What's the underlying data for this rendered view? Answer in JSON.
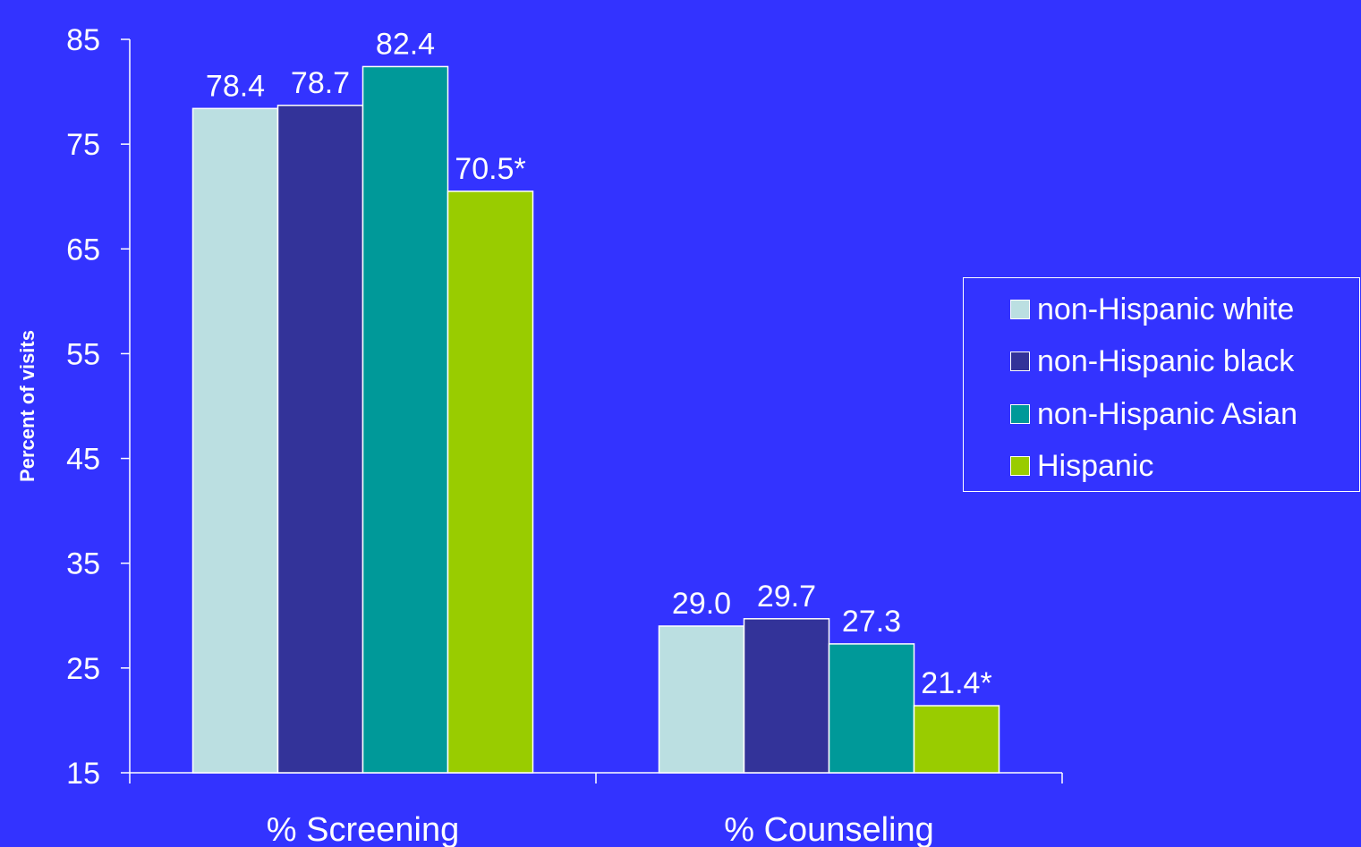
{
  "chart_data": {
    "type": "bar",
    "ylabel": "Percent of visits",
    "ylim": [
      15,
      85
    ],
    "yticks": [
      15,
      25,
      35,
      45,
      55,
      65,
      75,
      85
    ],
    "categories": [
      "% Screening",
      "% Counseling"
    ],
    "series": [
      {
        "name": "non-Hispanic white",
        "color": "#bbdfe1",
        "values": [
          78.4,
          29.0
        ],
        "labels": [
          "78.4",
          "29.0"
        ]
      },
      {
        "name": "non-Hispanic black",
        "color": "#333399",
        "values": [
          78.7,
          29.7
        ],
        "labels": [
          "78.7",
          "29.7"
        ]
      },
      {
        "name": "non-Hispanic Asian",
        "color": "#009999",
        "values": [
          82.4,
          27.3
        ],
        "labels": [
          "82.4",
          "27.3"
        ]
      },
      {
        "name": "Hispanic",
        "color": "#99cc00",
        "values": [
          70.5,
          21.4
        ],
        "labels": [
          "70.5*",
          "21.4*"
        ]
      }
    ],
    "legend_position": "right",
    "grid": false
  }
}
